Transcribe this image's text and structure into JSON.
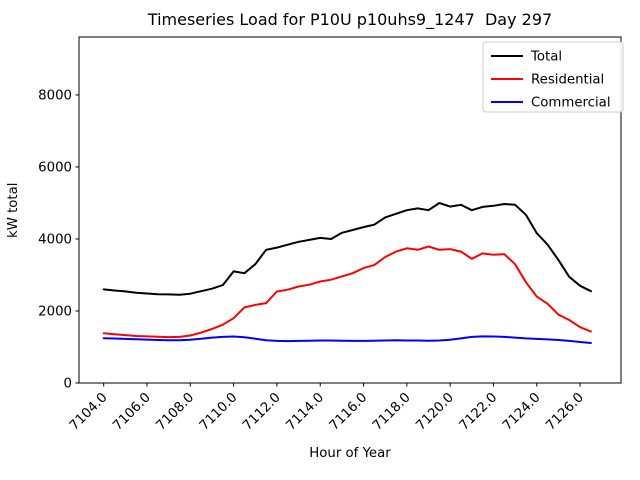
{
  "chart_data": {
    "type": "line",
    "title": "Timeseries Load for P10U p10uhs9_1247  Day 297",
    "xlabel": "Hour of Year",
    "ylabel": "kW total",
    "xlim": [
      7102.86,
      7127.89
    ],
    "ylim": [
      0,
      9609
    ],
    "grid": false,
    "legend": {
      "position": "upper right",
      "frame": true,
      "edge_color": "#cccccc"
    },
    "xticks": {
      "values": [
        7104,
        7106,
        7108,
        7110,
        7112,
        7114,
        7116,
        7118,
        7120,
        7122,
        7124,
        7126
      ],
      "labels": [
        "7104.0",
        "7106.0",
        "7108.0",
        "7110.0",
        "7112.0",
        "7114.0",
        "7116.0",
        "7118.0",
        "7120.0",
        "7122.0",
        "7124.0",
        "7126.0"
      ]
    },
    "yticks": {
      "values": [
        0,
        2000,
        4000,
        6000,
        8000
      ],
      "labels": [
        "0",
        "2000",
        "4000",
        "6000",
        "8000"
      ]
    },
    "x": [
      7104.0,
      7104.5,
      7105.0,
      7105.5,
      7106.0,
      7106.5,
      7107.0,
      7107.5,
      7108.0,
      7108.5,
      7109.0,
      7109.5,
      7110.0,
      7110.5,
      7111.0,
      7111.5,
      7112.0,
      7112.5,
      7113.0,
      7113.5,
      7114.0,
      7114.5,
      7115.0,
      7115.5,
      7116.0,
      7116.5,
      7117.0,
      7117.5,
      7118.0,
      7118.5,
      7119.0,
      7119.5,
      7120.0,
      7120.5,
      7121.0,
      7121.5,
      7122.0,
      7122.5,
      7123.0,
      7123.5,
      7124.0,
      7124.5,
      7125.0,
      7125.5,
      7126.0,
      7126.5
    ],
    "series": [
      {
        "name": "Total",
        "color": "#000000",
        "values": [
          2600,
          2570,
          2545,
          2505,
          2485,
          2465,
          2460,
          2450,
          2480,
          2550,
          2620,
          2720,
          3100,
          3050,
          3300,
          3700,
          3760,
          3840,
          3920,
          3975,
          4030,
          4000,
          4170,
          4250,
          4330,
          4400,
          4600,
          4700,
          4800,
          4850,
          4800,
          5000,
          4900,
          4950,
          4800,
          4890,
          4920,
          4970,
          4950,
          4670,
          4160,
          3840,
          3420,
          2950,
          2700,
          2550
        ]
      },
      {
        "name": "Residential",
        "color": "#ff0000",
        "values": [
          1380,
          1355,
          1330,
          1305,
          1295,
          1285,
          1275,
          1280,
          1320,
          1400,
          1500,
          1620,
          1800,
          2100,
          2170,
          2220,
          2540,
          2590,
          2680,
          2730,
          2820,
          2870,
          2960,
          3050,
          3190,
          3280,
          3500,
          3650,
          3740,
          3700,
          3790,
          3700,
          3720,
          3650,
          3450,
          3600,
          3560,
          3580,
          3300,
          2800,
          2400,
          2200,
          1900,
          1750,
          1550,
          1430
        ]
      },
      {
        "name": "Commercial",
        "color": "#0000ff",
        "values": [
          1245,
          1235,
          1225,
          1215,
          1205,
          1195,
          1185,
          1190,
          1200,
          1230,
          1260,
          1280,
          1290,
          1270,
          1230,
          1190,
          1170,
          1165,
          1170,
          1175,
          1180,
          1180,
          1175,
          1170,
          1170,
          1175,
          1180,
          1185,
          1180,
          1180,
          1175,
          1180,
          1200,
          1240,
          1280,
          1295,
          1290,
          1280,
          1260,
          1240,
          1225,
          1210,
          1195,
          1170,
          1140,
          1110
        ]
      }
    ]
  }
}
